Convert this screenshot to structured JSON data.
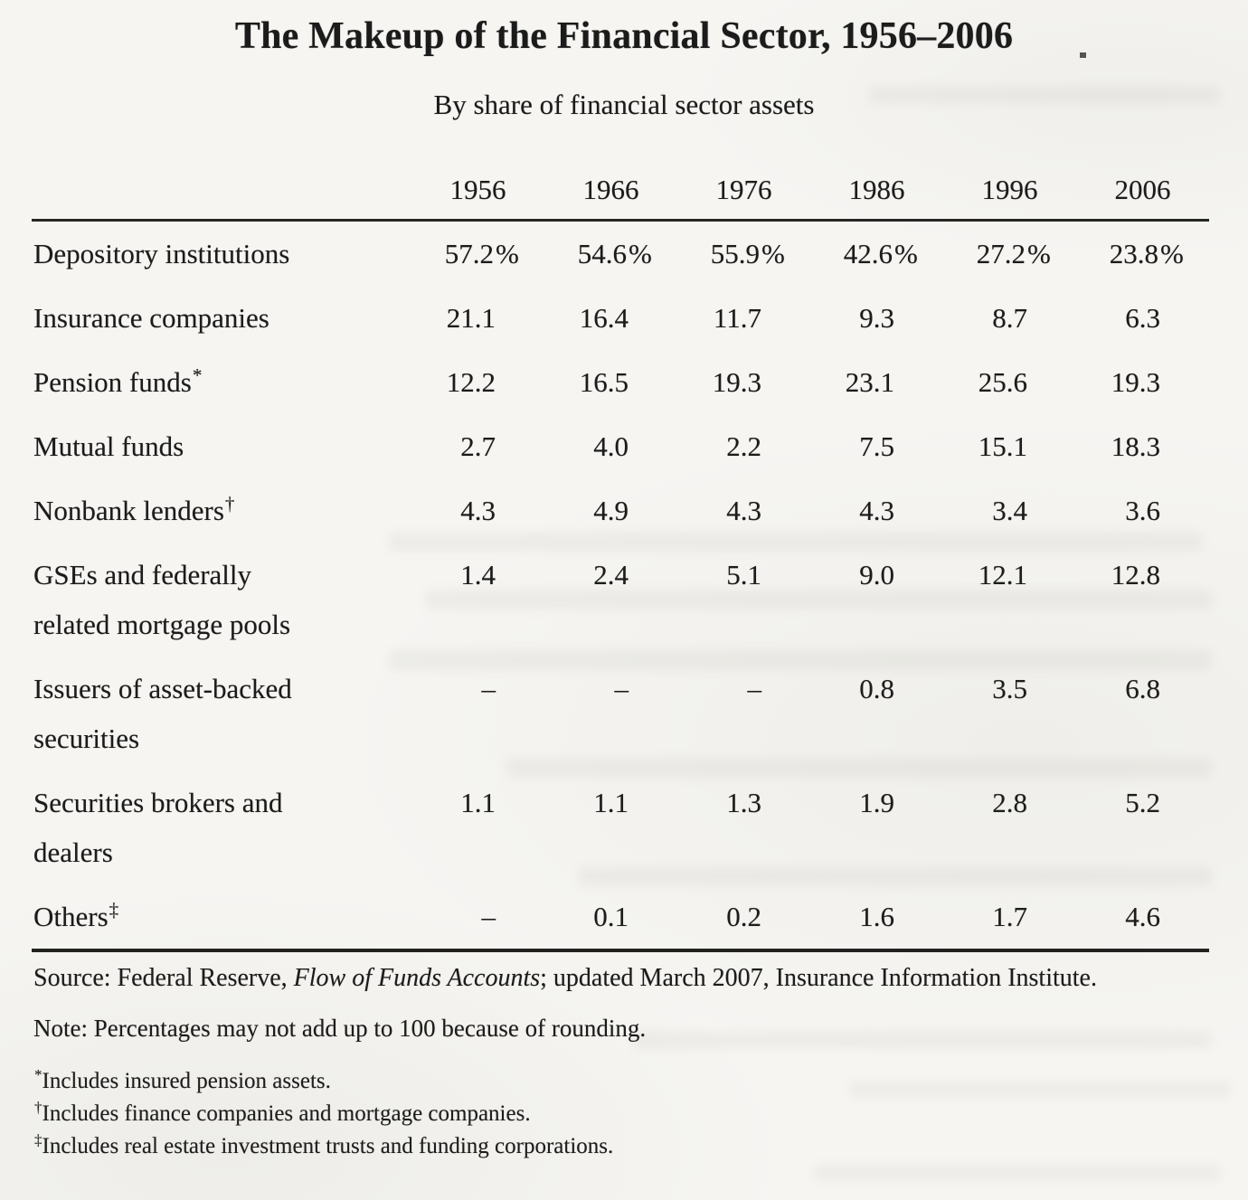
{
  "page": {
    "title": "The Makeup of the Financial Sector, 1956–2006",
    "subtitle": "By share of financial sector assets"
  },
  "table": {
    "year_headers": [
      "1956",
      "1966",
      "1976",
      "1986",
      "1996",
      "2006"
    ],
    "rows": [
      {
        "lines": [
          "Depository institutions"
        ],
        "mark": "",
        "values": [
          "57.2%",
          "54.6%",
          "55.9%",
          "42.6%",
          "27.2%",
          "23.8%"
        ]
      },
      {
        "lines": [
          "Insurance companies"
        ],
        "mark": "",
        "values": [
          "21.1",
          "16.4",
          "11.7",
          "9.3",
          "8.7",
          "6.3"
        ]
      },
      {
        "lines": [
          "Pension funds"
        ],
        "mark": "*",
        "values": [
          "12.2",
          "16.5",
          "19.3",
          "23.1",
          "25.6",
          "19.3"
        ]
      },
      {
        "lines": [
          "Mutual funds"
        ],
        "mark": "",
        "values": [
          "2.7",
          "4.0",
          "2.2",
          "7.5",
          "15.1",
          "18.3"
        ]
      },
      {
        "lines": [
          "Nonbank lenders"
        ],
        "mark": "†",
        "values": [
          "4.3",
          "4.9",
          "4.3",
          "4.3",
          "3.4",
          "3.6"
        ]
      },
      {
        "lines": [
          "GSEs and federally",
          "related mortgage pools"
        ],
        "mark": "",
        "values": [
          "1.4",
          "2.4",
          "5.1",
          "9.0",
          "12.1",
          "12.8"
        ]
      },
      {
        "lines": [
          "Issuers of asset-backed",
          "securities"
        ],
        "mark": "",
        "values": [
          "–",
          "–",
          "–",
          "0.8",
          "3.5",
          "6.8"
        ]
      },
      {
        "lines": [
          "Securities brokers and",
          "dealers"
        ],
        "mark": "",
        "values": [
          "1.1",
          "1.1",
          "1.3",
          "1.9",
          "2.8",
          "5.2"
        ]
      },
      {
        "lines": [
          "Others"
        ],
        "mark": "‡",
        "values": [
          "–",
          "0.1",
          "0.2",
          "1.6",
          "1.7",
          "4.6"
        ]
      }
    ]
  },
  "footer": {
    "source": {
      "prefix": "Source: Federal Reserve, ",
      "italic": "Flow of Funds Accounts",
      "suffix": "; updated March 2007, Insurance Information Institute."
    },
    "note": "Note: Percentages may not add up to 100 because of rounding.",
    "footnotes": [
      {
        "mark": "*",
        "text": "Includes insured pension assets."
      },
      {
        "mark": "†",
        "text": "Includes finance companies and mortgage companies."
      },
      {
        "mark": "‡",
        "text": "Includes real estate investment trusts and funding corporations."
      }
    ]
  },
  "colors": {
    "paper": "#f6f5f2",
    "ink": "#1b1b1b"
  }
}
